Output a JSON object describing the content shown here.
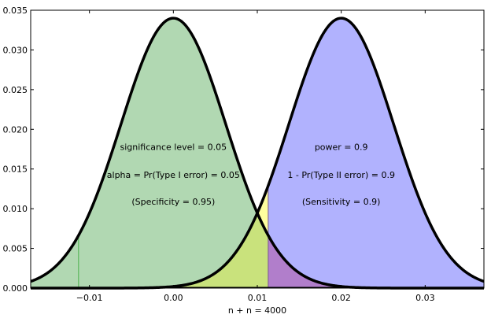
{
  "chart_data": {
    "type": "area",
    "xlabel": "n + n = 4000",
    "ylabel": "",
    "xlim": [
      -0.017,
      0.037
    ],
    "ylim": [
      0,
      0.035
    ],
    "xticks": [
      -0.01,
      0.0,
      0.01,
      0.02,
      0.03
    ],
    "xtick_labels": [
      "−0.01",
      "0.00",
      "0.01",
      "0.02",
      "0.03"
    ],
    "yticks": [
      0.0,
      0.005,
      0.01,
      0.015,
      0.02,
      0.025,
      0.03,
      0.035
    ],
    "ytick_labels": [
      "0.000",
      "0.005",
      "0.010",
      "0.015",
      "0.020",
      "0.025",
      "0.030",
      "0.035"
    ],
    "grid": false,
    "null_distribution": {
      "mean": 0.0,
      "sd": 0.00625,
      "peak": 0.034
    },
    "alternative_distribution": {
      "mean": 0.02,
      "sd": 0.00625,
      "peak": 0.034
    },
    "critical_value": 0.0113,
    "left_marker": -0.0113,
    "colors": {
      "null_fill": "#b1d8b2",
      "alt_fill": "#b1b2fe",
      "beta_region": "#c9e27c",
      "beta_region_top": "#fefe9e",
      "overlap": "#b17ecb",
      "marker": "#5cb85c",
      "curve": "#000000"
    },
    "annotations": {
      "left": [
        "significance level = 0.05",
        "alpha = Pr(Type I error) = 0.05",
        "(Specificity = 0.95)"
      ],
      "right": [
        "power = 0.9",
        "1 - Pr(Type II error) = 0.9",
        "(Sensitivity = 0.9)"
      ]
    }
  }
}
